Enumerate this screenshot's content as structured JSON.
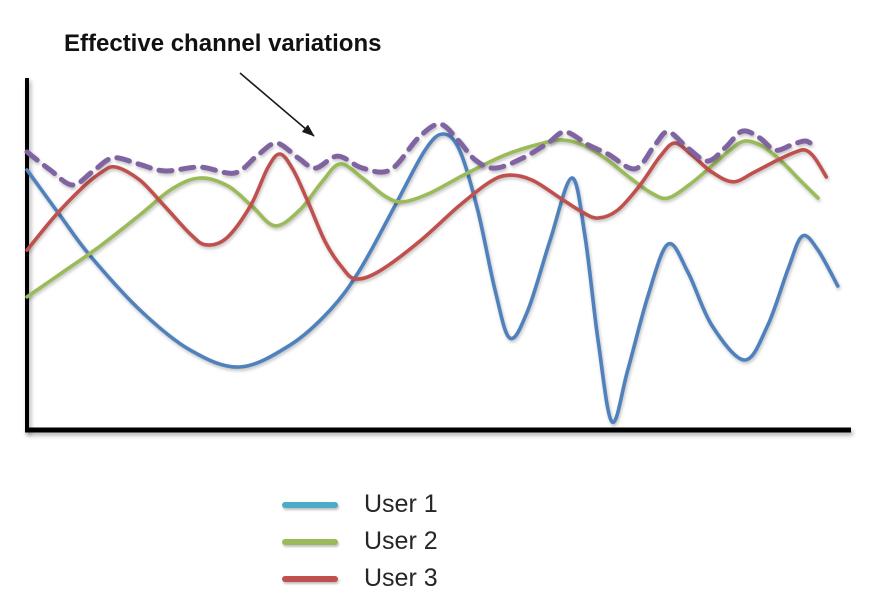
{
  "annotation": {
    "text": "Effective channel variations"
  },
  "legend": {
    "items": [
      {
        "label": "User 1",
        "color": "#4BACC6"
      },
      {
        "label": "User 2",
        "color": "#9BBB59"
      },
      {
        "label": "User 3",
        "color": "#C0504D"
      }
    ]
  },
  "colors": {
    "axis": "#000000",
    "arrow": "#1a1a1a",
    "background": "#ffffff",
    "title_text": "#111111",
    "legend_text": "#262626"
  },
  "chart_data": {
    "type": "line",
    "title": "",
    "xlabel": "",
    "ylabel": "",
    "annotation": {
      "text": "Effective channel variations",
      "points_to": "envelope"
    },
    "axes": {
      "ticks_visible": false,
      "gridlines": false,
      "x_range": [
        0,
        100
      ],
      "y_range": [
        0,
        100
      ]
    },
    "legend_position": "bottom-center",
    "series": [
      {
        "name": "User 1",
        "color": "#4F81BD",
        "style": "solid",
        "points": [
          [
            0,
            73.9
          ],
          [
            4,
            61
          ],
          [
            7.6,
            49.7
          ],
          [
            13.7,
            34.1
          ],
          [
            19.8,
            22.7
          ],
          [
            25.8,
            17.9
          ],
          [
            31.9,
            24.1
          ],
          [
            36.8,
            34.1
          ],
          [
            40.4,
            45.5
          ],
          [
            44.7,
            63.9
          ],
          [
            48.3,
            79.5
          ],
          [
            50.5,
            84.1
          ],
          [
            52.5,
            79.5
          ],
          [
            54.7,
            62.5
          ],
          [
            56.8,
            39.8
          ],
          [
            58.6,
            26.1
          ],
          [
            60.8,
            34.1
          ],
          [
            63.5,
            54
          ],
          [
            66.1,
            71.6
          ],
          [
            67.7,
            55.4
          ],
          [
            69.3,
            25.6
          ],
          [
            71,
            2.3
          ],
          [
            72.9,
            17
          ],
          [
            75.4,
            38.4
          ],
          [
            77.8,
            52.8
          ],
          [
            80.2,
            44.9
          ],
          [
            83.1,
            29.8
          ],
          [
            87.1,
            19.9
          ],
          [
            89.9,
            29.8
          ],
          [
            92.4,
            46
          ],
          [
            94.1,
            55.1
          ],
          [
            96,
            51.1
          ],
          [
            98.4,
            40.9
          ]
        ]
      },
      {
        "name": "User 2",
        "color": "#9BBB59",
        "style": "solid",
        "points": [
          [
            0,
            37.8
          ],
          [
            4,
            44.3
          ],
          [
            8.9,
            52.3
          ],
          [
            13.7,
            61.1
          ],
          [
            17.6,
            68.5
          ],
          [
            21,
            71.6
          ],
          [
            24.4,
            69.3
          ],
          [
            27.3,
            63.6
          ],
          [
            30.1,
            58
          ],
          [
            33.1,
            62.5
          ],
          [
            35.8,
            70.5
          ],
          [
            38,
            75.6
          ],
          [
            40.7,
            71.6
          ],
          [
            43.4,
            66.5
          ],
          [
            45.6,
            64.8
          ],
          [
            48.9,
            67.3
          ],
          [
            53.2,
            72.7
          ],
          [
            58,
            78.1
          ],
          [
            62.3,
            81.3
          ],
          [
            65,
            82.4
          ],
          [
            67.7,
            80.7
          ],
          [
            70.1,
            77.3
          ],
          [
            73.2,
            71.6
          ],
          [
            75.8,
            67.3
          ],
          [
            77.8,
            65.9
          ],
          [
            80.5,
            69.9
          ],
          [
            83.1,
            75
          ],
          [
            85.3,
            79.5
          ],
          [
            87.1,
            82.1
          ],
          [
            89.2,
            80.7
          ],
          [
            91.4,
            76.7
          ],
          [
            93.8,
            71
          ],
          [
            96,
            65.9
          ]
        ]
      },
      {
        "name": "User 3",
        "color": "#C0504D",
        "style": "solid",
        "points": [
          [
            0,
            51.1
          ],
          [
            3.4,
            60.8
          ],
          [
            6.7,
            68.8
          ],
          [
            9.1,
            73.3
          ],
          [
            10.8,
            74.7
          ],
          [
            13.7,
            71
          ],
          [
            16.7,
            63.6
          ],
          [
            19.8,
            55.7
          ],
          [
            21.7,
            52.6
          ],
          [
            24.2,
            54.5
          ],
          [
            27.1,
            63.6
          ],
          [
            29.2,
            74.4
          ],
          [
            30.7,
            78.4
          ],
          [
            32.3,
            73.9
          ],
          [
            34.1,
            64.8
          ],
          [
            36.2,
            53.4
          ],
          [
            38.2,
            46.3
          ],
          [
            39.9,
            42.9
          ],
          [
            42.8,
            45.2
          ],
          [
            47.7,
            53.7
          ],
          [
            52.3,
            63.4
          ],
          [
            56,
            70.2
          ],
          [
            58.4,
            72.4
          ],
          [
            61.3,
            71
          ],
          [
            64.7,
            65.9
          ],
          [
            67.4,
            61.9
          ],
          [
            69.3,
            60.2
          ],
          [
            71.7,
            62.5
          ],
          [
            74.4,
            69.6
          ],
          [
            76.8,
            77.6
          ],
          [
            78.6,
            81.5
          ],
          [
            80.7,
            78.1
          ],
          [
            83.1,
            73.3
          ],
          [
            85.7,
            70.5
          ],
          [
            88.3,
            73.3
          ],
          [
            91.1,
            76.7
          ],
          [
            93.3,
            79
          ],
          [
            94.5,
            79.5
          ],
          [
            95.6,
            77.3
          ],
          [
            97,
            71.9
          ]
        ]
      },
      {
        "name": "Effective channel variations",
        "color": "#8064A2",
        "style": "dashed",
        "points": [
          [
            0,
            79
          ],
          [
            2.8,
            73.9
          ],
          [
            5.5,
            69.6
          ],
          [
            7.9,
            73.3
          ],
          [
            10.4,
            77.3
          ],
          [
            13.5,
            75.6
          ],
          [
            16.7,
            73.6
          ],
          [
            21,
            74.7
          ],
          [
            25.2,
            73
          ],
          [
            28,
            78.1
          ],
          [
            30.3,
            81.5
          ],
          [
            32.9,
            77.3
          ],
          [
            35,
            74.4
          ],
          [
            37.7,
            77.8
          ],
          [
            40.7,
            74.4
          ],
          [
            44.1,
            73.9
          ],
          [
            47.5,
            83
          ],
          [
            50.1,
            86.9
          ],
          [
            52.3,
            82.4
          ],
          [
            54.4,
            76.7
          ],
          [
            56.8,
            74.4
          ],
          [
            60.2,
            77.3
          ],
          [
            63.2,
            81.5
          ],
          [
            65.3,
            84.7
          ],
          [
            68.1,
            81
          ],
          [
            70.5,
            78.4
          ],
          [
            73.8,
            74.2
          ],
          [
            76.2,
            81
          ],
          [
            77.8,
            84.7
          ],
          [
            80.2,
            80.1
          ],
          [
            82.6,
            76.4
          ],
          [
            84.7,
            80.1
          ],
          [
            86.8,
            84.9
          ],
          [
            88.9,
            83
          ],
          [
            90.8,
            79.5
          ],
          [
            92.8,
            81
          ],
          [
            94.5,
            82.1
          ],
          [
            95.8,
            80.1
          ]
        ]
      }
    ]
  }
}
